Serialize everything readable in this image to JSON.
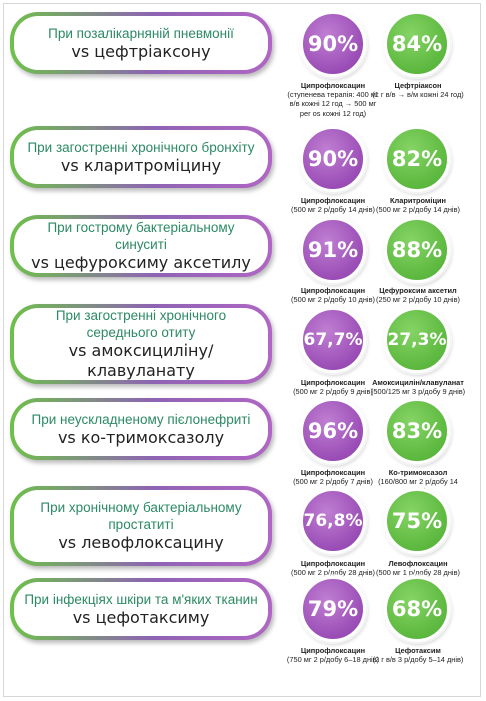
{
  "rows": [
    {
      "condition": "При позалікарняній пневмонії",
      "vs": "vs цефтріаксону",
      "cipro_pct": "90%",
      "comp_pct": "84%",
      "cipro_name": "Ципрофлоксацин",
      "cipro_dose": "(ступенева терапія: 400 мг в/в кожні 12 год → 500 мг per os кожні 12 год)",
      "comp_name": "Цефтріаксон",
      "comp_dose": "(1 г в/в → в/м кожні 24 год)"
    },
    {
      "condition": "При загостренні хронічного бронхіту",
      "vs": "vs кларитроміцину",
      "cipro_pct": "90%",
      "comp_pct": "82%",
      "cipro_name": "Ципрофлоксацин",
      "cipro_dose": "(500 мг 2 р/добу 14 днів)",
      "comp_name": "Кларитроміцин",
      "comp_dose": "(500 мг 2 р/добу 14 днів)"
    },
    {
      "condition": "При гострому бактеріальному синуситі",
      "vs": "vs цефуроксиму аксетилу",
      "cipro_pct": "91%",
      "comp_pct": "88%",
      "cipro_name": "Ципрофлоксацин",
      "cipro_dose": "(500 мг 2 р/добу 10 днів)",
      "comp_name": "Цефуроксим аксетил",
      "comp_dose": "(250 мг 2 р/добу 10 днів)"
    },
    {
      "condition": "При загостренні хронічного середнього отиту",
      "vs": "vs амоксициліну/клавуланату",
      "cipro_pct": "67,7%",
      "comp_pct": "27,3%",
      "cipro_name": "Ципрофлоксацин",
      "cipro_dose": "(500 мг 2 р/добу 9 днів)",
      "comp_name": "Амоксицилін/клавуланат",
      "comp_dose": "(500/125 мг 3 р/добу 9 днів)"
    },
    {
      "condition": "При неускладненому пієлонефриті",
      "vs": "vs ко-тримоксазолу",
      "cipro_pct": "96%",
      "comp_pct": "83%",
      "cipro_name": "Ципрофлоксацин",
      "cipro_dose": "(500 мг 2 р/добу 7 днів)",
      "comp_name": "Ко-тримоксазол",
      "comp_dose": "(160/800 мг 2 р/добу 14 днів)"
    },
    {
      "condition": "При хронічному бактеріальному простатиті",
      "vs": "vs левофлоксацину",
      "cipro_pct": "76,8%",
      "comp_pct": "75%",
      "cipro_name": "Ципрофлоксацин",
      "cipro_dose": "(500 мг 2 р/добу 28 днів)",
      "comp_name": "Левофлоксацин",
      "comp_dose": "(500 мг 1 р/добу 28 днів)"
    },
    {
      "condition": "При інфекціях шкіри та м'яких тканин",
      "vs": "vs цефотаксиму",
      "cipro_pct": "79%",
      "comp_pct": "68%",
      "cipro_name": "Ципрофлоксацин",
      "cipro_dose": "(750 мг 2 р/добу 6–18 днів)",
      "comp_name": "Цефотаксим",
      "comp_dose": "(2 г в/в 3 р/добу 5–14 днів)"
    }
  ],
  "colors": {
    "cipro_circle": "#9a4db6",
    "comparator_circle": "#5cb83e",
    "condition_text": "#2c8a64"
  }
}
